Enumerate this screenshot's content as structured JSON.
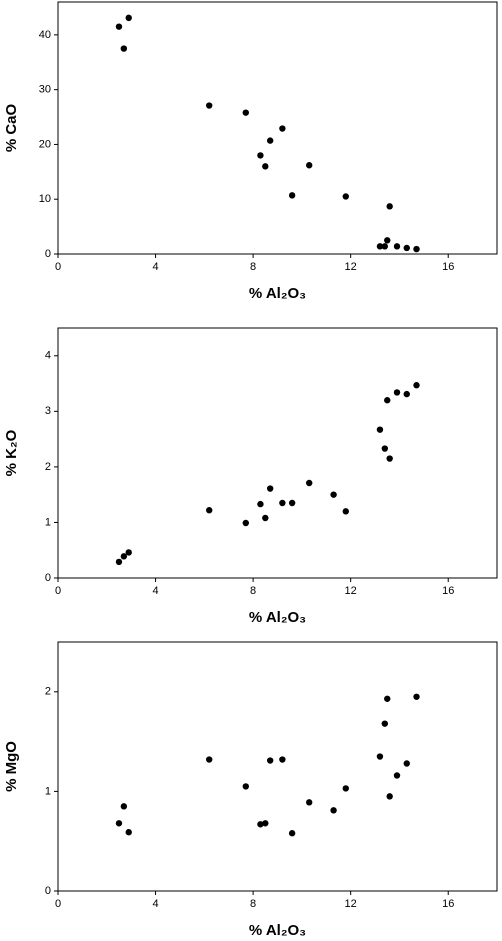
{
  "chart_data": [
    {
      "type": "scatter",
      "xlabel": "% Al₂O₃",
      "ylabel": "% CaO",
      "color": "#000000",
      "x": [
        2.5,
        2.7,
        2.9,
        6.2,
        7.7,
        8.3,
        8.5,
        8.7,
        9.2,
        9.6,
        10.3,
        11.8,
        13.2,
        13.4,
        13.5,
        13.6,
        13.9,
        14.3,
        14.7
      ],
      "values": [
        41.5,
        37.5,
        43.1,
        27.1,
        25.8,
        18,
        16,
        20.7,
        22.9,
        10.7,
        16.2,
        10.5,
        1.4,
        1.4,
        2.5,
        8.7,
        1.4,
        1.1,
        0.9
      ],
      "xlim": [
        0,
        18
      ],
      "ylim": [
        0,
        46
      ],
      "xticks": [
        0,
        4,
        8,
        12,
        16
      ],
      "yticks": [
        0,
        10,
        20,
        30,
        40
      ]
    },
    {
      "type": "scatter",
      "xlabel": "% Al₂O₃",
      "ylabel": "% K₂O",
      "color": "#000000",
      "x": [
        2.5,
        2.7,
        2.9,
        6.2,
        7.7,
        8.3,
        8.5,
        8.7,
        9.2,
        9.6,
        10.3,
        11.3,
        11.8,
        13.2,
        13.4,
        13.5,
        13.6,
        13.9,
        14.3,
        14.7
      ],
      "values": [
        0.29,
        0.39,
        0.46,
        1.22,
        0.99,
        1.33,
        1.08,
        1.61,
        1.35,
        1.35,
        1.71,
        1.5,
        1.2,
        2.67,
        2.33,
        3.2,
        2.15,
        3.34,
        3.31,
        3.47
      ],
      "xlim": [
        0,
        18
      ],
      "ylim": [
        0,
        4.5
      ],
      "xticks": [
        0,
        4,
        8,
        12,
        16
      ],
      "yticks": [
        0,
        1,
        2,
        3,
        4
      ]
    },
    {
      "type": "scatter",
      "xlabel": "% Al₂O₃",
      "ylabel": "% MgO",
      "color": "#000000",
      "x": [
        2.5,
        2.7,
        2.9,
        6.2,
        7.7,
        8.3,
        8.5,
        8.7,
        9.2,
        9.6,
        10.3,
        11.3,
        11.8,
        13.2,
        13.4,
        13.5,
        13.6,
        13.9,
        14.3,
        14.7
      ],
      "values": [
        0.68,
        0.85,
        0.59,
        1.32,
        1.05,
        0.67,
        0.68,
        1.31,
        1.32,
        0.58,
        0.89,
        0.81,
        1.03,
        1.35,
        1.68,
        1.93,
        0.95,
        1.16,
        1.28,
        1.95
      ],
      "xlim": [
        0,
        18
      ],
      "ylim": [
        0,
        2.5
      ],
      "xticks": [
        0,
        4,
        8,
        12,
        16
      ],
      "yticks": [
        0,
        1,
        2
      ]
    }
  ]
}
